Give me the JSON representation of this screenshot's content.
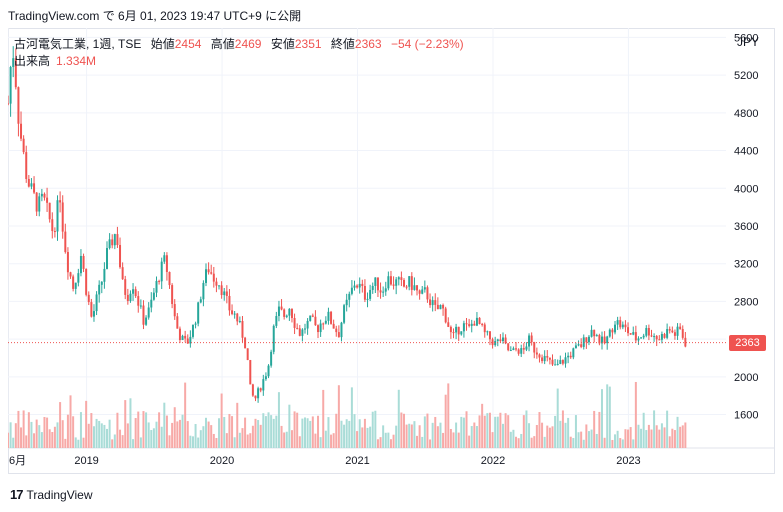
{
  "header": {
    "text": "TradingView.com で 6月 01, 2023 19:47 UTC+9 に公開"
  },
  "legend": {
    "symbol": "古河電気工業, 1週, TSE",
    "open_label": "始値",
    "open": "2454",
    "high_label": "高値",
    "high": "2469",
    "low_label": "安値",
    "low": "2351",
    "close_label": "終値",
    "close": "2363",
    "change": "−54 (−2.23%)"
  },
  "volume": {
    "label": "出来高",
    "value": "1.334M"
  },
  "currency": "JPY",
  "last_price_label": "2363",
  "footer": {
    "logo": "17",
    "brand": "TradingView"
  },
  "colors": {
    "up": "#26a69a",
    "down": "#ef5350",
    "up_volume": "#a9dcd7",
    "down_volume": "#f7a9a7",
    "grid": "#f0f3fa"
  },
  "chart_data": {
    "type": "candlestick",
    "y_ticks": [
      "5600",
      "5200",
      "4800",
      "4400",
      "4000",
      "3600",
      "3200",
      "2800",
      "2400",
      "2000",
      "1600"
    ],
    "y_values": [
      5600,
      5200,
      4800,
      4400,
      4000,
      3600,
      3200,
      2800,
      2400,
      2000,
      1600
    ],
    "ylim": [
      1245,
      5700
    ],
    "x_ticks": [
      {
        "label": "6月",
        "t": 2018.42
      },
      {
        "label": "2019",
        "t": 2019.0
      },
      {
        "label": "2020",
        "t": 2020.0
      },
      {
        "label": "2021",
        "t": 2021.0
      },
      {
        "label": "2022",
        "t": 2022.0
      },
      {
        "label": "2023",
        "t": 2023.0
      }
    ],
    "xlim": [
      2018.42,
      2023.72
    ],
    "price_path": [
      [
        2018.42,
        4900
      ],
      [
        2018.44,
        5300
      ],
      [
        2018.46,
        5450
      ],
      [
        2018.48,
        5100
      ],
      [
        2018.5,
        4700
      ],
      [
        2018.53,
        4400
      ],
      [
        2018.56,
        4100
      ],
      [
        2018.6,
        3950
      ],
      [
        2018.64,
        3800
      ],
      [
        2018.68,
        3900
      ],
      [
        2018.72,
        3700
      ],
      [
        2018.75,
        3550
      ],
      [
        2018.78,
        3700
      ],
      [
        2018.8,
        4000
      ],
      [
        2018.83,
        3500
      ],
      [
        2018.86,
        3200
      ],
      [
        2018.9,
        2950
      ],
      [
        2018.93,
        3100
      ],
      [
        2018.96,
        3300
      ],
      [
        2019.0,
        2900
      ],
      [
        2019.04,
        2600
      ],
      [
        2019.07,
        2800
      ],
      [
        2019.11,
        3000
      ],
      [
        2019.15,
        3300
      ],
      [
        2019.19,
        3450
      ],
      [
        2019.22,
        3550
      ],
      [
        2019.26,
        3000
      ],
      [
        2019.3,
        2850
      ],
      [
        2019.34,
        3000
      ],
      [
        2019.38,
        2800
      ],
      [
        2019.42,
        2600
      ],
      [
        2019.46,
        2700
      ],
      [
        2019.5,
        2900
      ],
      [
        2019.54,
        3100
      ],
      [
        2019.58,
        3250
      ],
      [
        2019.62,
        2900
      ],
      [
        2019.66,
        2550
      ],
      [
        2019.7,
        2400
      ],
      [
        2019.74,
        2350
      ],
      [
        2019.78,
        2500
      ],
      [
        2019.82,
        2700
      ],
      [
        2019.86,
        3000
      ],
      [
        2019.9,
        3150
      ],
      [
        2019.94,
        3050
      ],
      [
        2019.98,
        3000
      ],
      [
        2020.02,
        2850
      ],
      [
        2020.06,
        2700
      ],
      [
        2020.1,
        2650
      ],
      [
        2020.14,
        2500
      ],
      [
        2020.18,
        2300
      ],
      [
        2020.21,
        1850
      ],
      [
        2020.24,
        1750
      ],
      [
        2020.27,
        1850
      ],
      [
        2020.3,
        1950
      ],
      [
        2020.34,
        2100
      ],
      [
        2020.38,
        2500
      ],
      [
        2020.42,
        2700
      ],
      [
        2020.46,
        2650
      ],
      [
        2020.5,
        2750
      ],
      [
        2020.54,
        2550
      ],
      [
        2020.58,
        2450
      ],
      [
        2020.62,
        2550
      ],
      [
        2020.66,
        2600
      ],
      [
        2020.7,
        2500
      ],
      [
        2020.74,
        2600
      ],
      [
        2020.78,
        2650
      ],
      [
        2020.82,
        2550
      ],
      [
        2020.86,
        2450
      ],
      [
        2020.9,
        2700
      ],
      [
        2020.94,
        2850
      ],
      [
        2020.98,
        3000
      ],
      [
        2021.02,
        2950
      ],
      [
        2021.06,
        2850
      ],
      [
        2021.1,
        2950
      ],
      [
        2021.14,
        3000
      ],
      [
        2021.18,
        2900
      ],
      [
        2021.22,
        3050
      ],
      [
        2021.26,
        3000
      ],
      [
        2021.3,
        3000
      ],
      [
        2021.34,
        2950
      ],
      [
        2021.38,
        3000
      ],
      [
        2021.42,
        2950
      ],
      [
        2021.46,
        2850
      ],
      [
        2021.5,
        2900
      ],
      [
        2021.54,
        2800
      ],
      [
        2021.58,
        2700
      ],
      [
        2021.62,
        2750
      ],
      [
        2021.66,
        2600
      ],
      [
        2021.7,
        2400
      ],
      [
        2021.74,
        2500
      ],
      [
        2021.78,
        2550
      ],
      [
        2021.82,
        2500
      ],
      [
        2021.86,
        2600
      ],
      [
        2021.9,
        2550
      ],
      [
        2021.94,
        2450
      ],
      [
        2021.98,
        2400
      ],
      [
        2022.02,
        2350
      ],
      [
        2022.06,
        2400
      ],
      [
        2022.1,
        2300
      ],
      [
        2022.14,
        2250
      ],
      [
        2022.18,
        2300
      ],
      [
        2022.22,
        2250
      ],
      [
        2022.26,
        2400
      ],
      [
        2022.3,
        2300
      ],
      [
        2022.34,
        2250
      ],
      [
        2022.38,
        2200
      ],
      [
        2022.42,
        2150
      ],
      [
        2022.46,
        2100
      ],
      [
        2022.5,
        2150
      ],
      [
        2022.54,
        2200
      ],
      [
        2022.58,
        2250
      ],
      [
        2022.62,
        2300
      ],
      [
        2022.66,
        2350
      ],
      [
        2022.7,
        2450
      ],
      [
        2022.74,
        2500
      ],
      [
        2022.78,
        2400
      ],
      [
        2022.82,
        2350
      ],
      [
        2022.86,
        2450
      ],
      [
        2022.9,
        2600
      ],
      [
        2022.94,
        2550
      ],
      [
        2022.98,
        2500
      ],
      [
        2023.02,
        2450
      ],
      [
        2023.06,
        2400
      ],
      [
        2023.1,
        2450
      ],
      [
        2023.14,
        2500
      ],
      [
        2023.18,
        2450
      ],
      [
        2023.22,
        2400
      ],
      [
        2023.26,
        2450
      ],
      [
        2023.3,
        2500
      ],
      [
        2023.34,
        2450
      ],
      [
        2023.38,
        2500
      ],
      [
        2023.42,
        2363
      ]
    ]
  }
}
